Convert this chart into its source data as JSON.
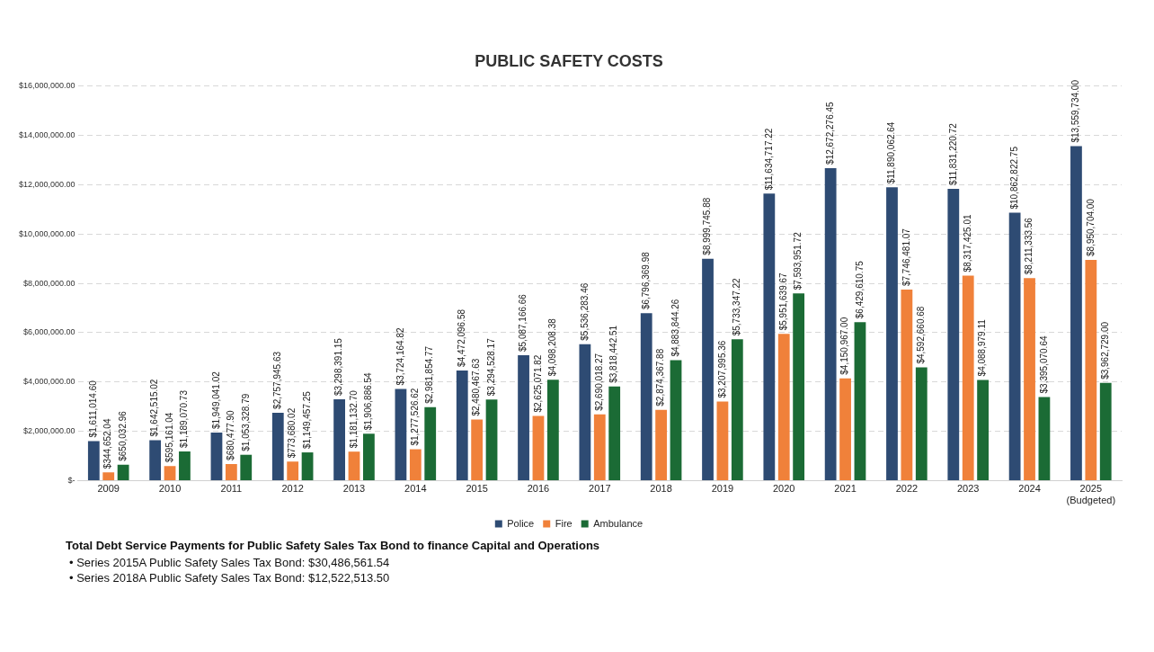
{
  "chart_data": {
    "type": "bar",
    "title": "PUBLIC SAFETY COSTS",
    "categories": [
      "2009",
      "2010",
      "2011",
      "2012",
      "2013",
      "2014",
      "2015",
      "2016",
      "2017",
      "2018",
      "2019",
      "2020",
      "2021",
      "2022",
      "2023",
      "2024",
      "2025\n(Budgeted)"
    ],
    "series": [
      {
        "name": "Police",
        "color": "#2e4b73",
        "values": [
          1611014.6,
          1642515.02,
          1949041.02,
          2757945.63,
          3298391.15,
          3724164.82,
          4472096.58,
          5087166.66,
          5536283.46,
          6796369.98,
          8999745.88,
          11634717.22,
          12672276.45,
          11890062.64,
          11831220.72,
          10862822.75,
          13559734.0
        ],
        "value_labels": [
          "$1,611,014.60",
          "$1,642,515.02",
          "$1,949,041.02",
          "$2,757,945.63",
          "$3,298,391.15",
          "$3,724,164.82",
          "$4,472,096.58",
          "$5,087,166.66",
          "$5,536,283.46",
          "$6,796,369.98",
          "$8,999,745.88",
          "$11,634,717.22",
          "$12,672,276.45",
          "$11,890,062.64",
          "$11,831,220.72",
          "$10,862,822.75",
          "$13,559,734.00"
        ]
      },
      {
        "name": "Fire",
        "color": "#f0813a",
        "values": [
          344652.04,
          595161.04,
          680477.9,
          773680.02,
          1181132.7,
          1277526.62,
          2480467.63,
          2625071.82,
          2690018.27,
          2874367.88,
          3207995.36,
          5951639.67,
          4150967.0,
          7746481.07,
          8317425.01,
          8211333.56,
          8950704.0
        ],
        "value_labels": [
          "$344,652.04",
          "$595,161.04",
          "$680,477.90",
          "$773,680.02",
          "$1,181,132.70",
          "$1,277,526.62",
          "$2,480,467.63",
          "$2,625,071.82",
          "$2,690,018.27",
          "$2,874,367.88",
          "$3,207,995.36",
          "$5,951,639.67",
          "$4,150,967.00",
          "$7,746,481.07",
          "$8,317,425.01",
          "$8,211,333.56",
          "$8,950,704.00"
        ]
      },
      {
        "name": "Ambulance",
        "color": "#1b6b35",
        "values": [
          650032.96,
          1189070.73,
          1053328.79,
          1149457.25,
          1906886.54,
          2981854.77,
          3294528.17,
          4098208.38,
          3818442.51,
          4883844.26,
          5733347.22,
          7593951.72,
          6429610.75,
          4592660.68,
          4088979.11,
          3395070.64,
          3962729.0
        ],
        "value_labels": [
          "$650,032.96",
          "$1,189,070.73",
          "$1,053,328.79",
          "$1,149,457.25",
          "$1,906,886.54",
          "$2,981,854.77",
          "$3,294,528.17",
          "$4,098,208.38",
          "$3,818,442.51",
          "$4,883,844.26",
          "$5,733,347.22",
          "$7,593,951.72",
          "$6,429,610.75",
          "$4,592,660.68",
          "$4,088,979.11",
          "$3,395,070.64",
          "$3,962,729.00"
        ]
      }
    ],
    "ylim": [
      0,
      16000000
    ],
    "yticks": [
      {
        "value": 0,
        "label": "$-"
      },
      {
        "value": 2000000,
        "label": "$2,000,000.00"
      },
      {
        "value": 4000000,
        "label": "$4,000,000.00"
      },
      {
        "value": 6000000,
        "label": "$6,000,000.00"
      },
      {
        "value": 8000000,
        "label": "$8,000,000.00"
      },
      {
        "value": 10000000,
        "label": "$10,000,000.00"
      },
      {
        "value": 12000000,
        "label": "$12,000,000.00"
      },
      {
        "value": 14000000,
        "label": "$14,000,000.00"
      },
      {
        "value": 16000000,
        "label": "$16,000,000.00"
      }
    ],
    "grid": "y",
    "legend": "bottom",
    "annotations": [
      "Total Debt Service Payments for Public Safety Sales Tax Bond to finance Capital and Operations",
      "• Series 2015A Public Safety Sales Tax Bond: $30,486,561.54",
      "• Series 2018A Public Safety Sales Tax Bond: $12,522,513.50"
    ]
  }
}
